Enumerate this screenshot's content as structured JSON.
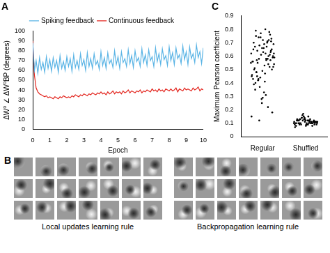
{
  "chart_data": [
    {
      "type": "line",
      "title": "A",
      "x_label": "Epoch",
      "y_label": "ΔW⁰ ∠ ΔW⁰BP (degrees)",
      "x": [
        0,
        0.1,
        0.2,
        0.3,
        0.4,
        0.5,
        0.6,
        0.7,
        0.8,
        0.9,
        1,
        1.1,
        1.2,
        1.3,
        1.4,
        1.5,
        1.6,
        1.7,
        1.8,
        1.9,
        2,
        2.1,
        2.2,
        2.3,
        2.4,
        2.5,
        2.6,
        2.7,
        2.8,
        2.9,
        3,
        3.1,
        3.2,
        3.3,
        3.4,
        3.5,
        3.6,
        3.7,
        3.8,
        3.9,
        4,
        4.1,
        4.2,
        4.3,
        4.4,
        4.5,
        4.6,
        4.7,
        4.8,
        4.9,
        5,
        5.1,
        5.2,
        5.3,
        5.4,
        5.5,
        5.6,
        5.7,
        5.8,
        5.9,
        6,
        6.1,
        6.2,
        6.3,
        6.4,
        6.5,
        6.6,
        6.7,
        6.8,
        6.9,
        7,
        7.1,
        7.2,
        7.3,
        7.4,
        7.5,
        7.6,
        7.7,
        7.8,
        7.9,
        8,
        8.1,
        8.2,
        8.3,
        8.4,
        8.5,
        8.6,
        8.7,
        8.8,
        8.9,
        9,
        9.1,
        9.2,
        9.3,
        9.4,
        9.5,
        9.6,
        9.7,
        9.8,
        9.9,
        10
      ],
      "series": [
        {
          "name": "Spiking feedback",
          "color": "#5ab4e5",
          "values": [
            88,
            60,
            70,
            57,
            73,
            61,
            68,
            58,
            74,
            62,
            71,
            59,
            73,
            63,
            70,
            58,
            75,
            62,
            69,
            60,
            74,
            64,
            72,
            59,
            76,
            63,
            70,
            61,
            77,
            65,
            71,
            60,
            78,
            64,
            72,
            62,
            77,
            66,
            70,
            61,
            79,
            65,
            73,
            62,
            78,
            67,
            71,
            63,
            80,
            66,
            74,
            62,
            79,
            68,
            72,
            64,
            81,
            67,
            75,
            63,
            80,
            69,
            73,
            64,
            82,
            68,
            76,
            65,
            81,
            70,
            74,
            64,
            83,
            69,
            77,
            66,
            82,
            71,
            75,
            65,
            84,
            70,
            78,
            66,
            83,
            72,
            76,
            67,
            85,
            71,
            79,
            66,
            84,
            72,
            77,
            68,
            86,
            73,
            79,
            67,
            83
          ]
        },
        {
          "name": "Continuous feedback",
          "color": "#e3261f",
          "values": [
            90,
            55,
            42,
            38,
            36,
            35,
            34,
            33,
            34,
            32,
            33,
            32,
            31,
            33,
            32,
            31,
            33,
            32,
            34,
            33,
            32,
            33,
            32,
            34,
            33,
            35,
            34,
            33,
            35,
            34,
            36,
            35,
            34,
            36,
            35,
            37,
            36,
            35,
            37,
            36,
            38,
            36,
            37,
            35,
            38,
            36,
            37,
            39,
            36,
            38,
            37,
            38,
            36,
            39,
            37,
            38,
            40,
            37,
            39,
            38,
            37,
            39,
            38,
            40,
            37,
            39,
            38,
            40,
            39,
            38,
            41,
            39,
            40,
            38,
            41,
            39,
            40,
            38,
            41,
            40,
            39,
            41,
            39,
            40,
            42,
            38,
            41,
            40,
            39,
            42,
            40,
            41,
            40,
            39,
            42,
            40,
            41,
            43,
            39,
            41,
            40
          ]
        }
      ],
      "xlim": [
        0,
        10
      ],
      "xticks": [
        0,
        1,
        2,
        3,
        4,
        5,
        6,
        7,
        8,
        9,
        10
      ],
      "ylim": [
        0,
        100
      ],
      "yticks": [
        0,
        10,
        20,
        30,
        40,
        50,
        60,
        70,
        80,
        90,
        100
      ],
      "legend": "top",
      "grid": false
    },
    {
      "type": "scatter",
      "title": "C",
      "y_label": "Maximum Pearson coefficient",
      "categories": [
        "Regular",
        "Shuffled"
      ],
      "values": [
        [
          0.55,
          0.62,
          0.48,
          0.71,
          0.66,
          0.43,
          0.58,
          0.74,
          0.52,
          0.69,
          0.35,
          0.61,
          0.77,
          0.45,
          0.57,
          0.64,
          0.5,
          0.72,
          0.39,
          0.6,
          0.68,
          0.54,
          0.47,
          0.75,
          0.63,
          0.28,
          0.56,
          0.7,
          0.42,
          0.59,
          0.66,
          0.51,
          0.78,
          0.44,
          0.62,
          0.31,
          0.57,
          0.73,
          0.49,
          0.65,
          0.22,
          0.58,
          0.69,
          0.53,
          0.4,
          0.76,
          0.61,
          0.46,
          0.67,
          0.55,
          0.18,
          0.63,
          0.5,
          0.72,
          0.37,
          0.59,
          0.8,
          0.48,
          0.64,
          0.25,
          0.56,
          0.71,
          0.43,
          0.6,
          0.33,
          0.67,
          0.52,
          0.74,
          0.15,
          0.58,
          0.45,
          0.65,
          0.29,
          0.7,
          0.54,
          0.12,
          0.62,
          0.41,
          0.79,
          0.57
        ],
        [
          0.1,
          0.12,
          0.09,
          0.11,
          0.13,
          0.08,
          0.1,
          0.14,
          0.11,
          0.09,
          0.12,
          0.1,
          0.15,
          0.09,
          0.11,
          0.13,
          0.1,
          0.08,
          0.12,
          0.11,
          0.16,
          0.1,
          0.09,
          0.12,
          0.11,
          0.14,
          0.1,
          0.13,
          0.09,
          0.11,
          0.1,
          0.12,
          0.08,
          0.17,
          0.11,
          0.1,
          0.13,
          0.09,
          0.12,
          0.1,
          0.11,
          0.14,
          0.09,
          0.12,
          0.1,
          0.11,
          0.13,
          0.07,
          0.12,
          0.1,
          0.11,
          0.09,
          0.13,
          0.1,
          0.12,
          0.11,
          0.15,
          0.1,
          0.12,
          0.11
        ]
      ],
      "color": "#000000",
      "ylim": [
        0,
        0.9
      ],
      "yticks": [
        0,
        0.1,
        0.2,
        0.3,
        0.4,
        0.5,
        0.6,
        0.7,
        0.8,
        0.9
      ],
      "grid": false
    }
  ],
  "image_grid": {
    "title": "B",
    "groups": [
      {
        "caption": "Local updates learning rule",
        "rows": 3,
        "columns": 7
      },
      {
        "caption": "Backpropagation learning rule",
        "rows": 3,
        "columns": 7
      }
    ]
  }
}
